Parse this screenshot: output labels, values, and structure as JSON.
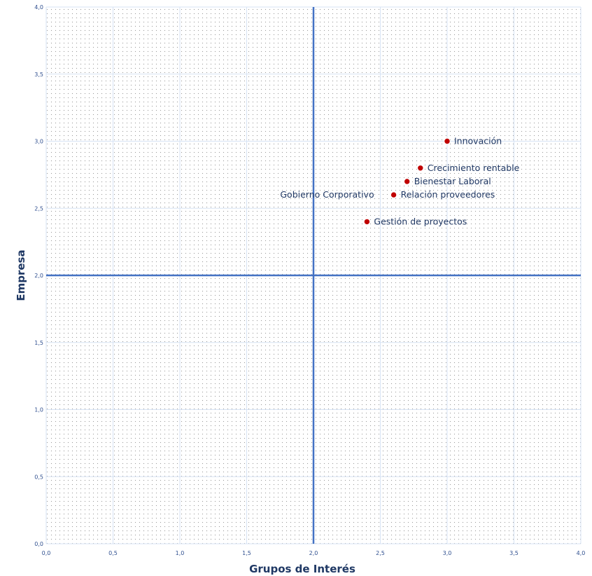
{
  "chart_data": {
    "type": "scatter",
    "title": "",
    "xlabel": "Grupos de Interés",
    "ylabel": "Empresa",
    "xlim": [
      0,
      4
    ],
    "ylim": [
      0,
      4
    ],
    "xticks": [
      "0,0",
      "0,5",
      "1,0",
      "1,5",
      "2,0",
      "2,5",
      "3,0",
      "3,5",
      "4,0"
    ],
    "yticks": [
      "0,0",
      "0,5",
      "1,0",
      "1,5",
      "2,0",
      "2,5",
      "3,0",
      "3,5",
      "4,0"
    ],
    "grid": true,
    "quadrant_lines": {
      "x": 2.0,
      "y": 2.0
    },
    "marker_color": "#c00000",
    "label_color": "#203864",
    "axis_color": "#4472c4",
    "points": [
      {
        "label": "Innovación",
        "x": 3.0,
        "y": 3.0
      },
      {
        "label": "Crecimiento rentable",
        "x": 2.8,
        "y": 2.8
      },
      {
        "label": "Bienestar Laboral",
        "x": 2.7,
        "y": 2.7
      },
      {
        "label": "Relación proveedores",
        "x": 2.6,
        "y": 2.6
      },
      {
        "label": "Gestión de proyectos",
        "x": 2.4,
        "y": 2.4
      },
      {
        "label": "Gobierno Corporativo",
        "x": 2.6,
        "y": 2.6
      }
    ]
  }
}
